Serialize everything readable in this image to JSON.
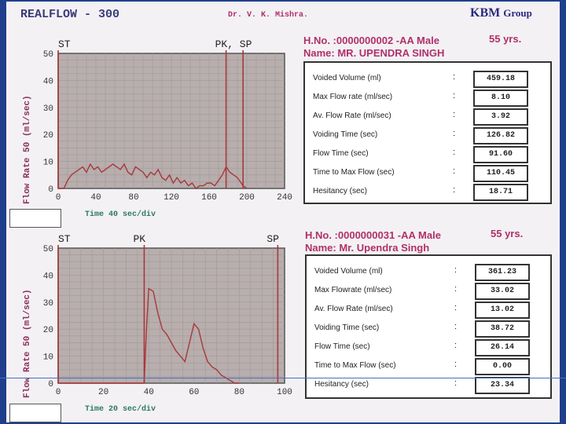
{
  "header": {
    "brand": "REALFLOW - 300",
    "doctor": "Dr. V. K. Mishra.",
    "company": "KBM",
    "company_suffix": "Group"
  },
  "colors": {
    "background": "#1f3e8c",
    "paper": "#f3f1f4",
    "plot": "#b8aeae",
    "trace": "#a8383a",
    "text_accent": "#b0306a"
  },
  "tests": [
    {
      "hno": "H.No. :0000000002 -AA  Male",
      "age": "55 yrs.",
      "name": "Name:  MR. UPENDRA SINGH",
      "ylabel": "Flow Rate 50 (ml/sec)",
      "timelabel": "Time 40 sec/div",
      "rows": [
        {
          "label": "Voided Volume (ml)",
          "value": "459.18"
        },
        {
          "label": "Max Flow rate (ml/sec)",
          "value": "8.10"
        },
        {
          "label": "Av. Flow Rate (ml/sec)",
          "value": "3.92"
        },
        {
          "label": "Voiding Time (sec)",
          "value": "126.82"
        },
        {
          "label": "Flow Time (sec)",
          "value": "91.60"
        },
        {
          "label": "Time to Max Flow (sec)",
          "value": "110.45"
        },
        {
          "label": "Hesitancy (sec)",
          "value": "18.71"
        }
      ]
    },
    {
      "hno": "H.No. :0000000031 -AA  Male",
      "age": "55 yrs.",
      "name": "Name:  Mr. Upendra Singh",
      "ylabel": "Flow Rate 50 (ml/sec)",
      "timelabel": "Time 20 sec/div",
      "rows": [
        {
          "label": "Voided Volume (ml)",
          "value": "361.23"
        },
        {
          "label": "Max Flowrate (ml/sec)",
          "value": "33.02"
        },
        {
          "label": "Av. Flow Rate (ml/sec)",
          "value": "13.02"
        },
        {
          "label": "Voiding Time (sec)",
          "value": "38.72"
        },
        {
          "label": "Flow Time (sec)",
          "value": "26.14"
        },
        {
          "label": "Time to Max Flow (sec)",
          "value": "0.00"
        },
        {
          "label": "Hesitancy (sec)",
          "value": "23.34"
        }
      ]
    }
  ],
  "chart_data": [
    {
      "type": "line",
      "xlim": [
        0,
        240
      ],
      "ylim": [
        0,
        50
      ],
      "xticks": [
        0,
        40,
        80,
        120,
        160,
        200,
        240
      ],
      "yticks": [
        0,
        10,
        20,
        30,
        40,
        50
      ],
      "markers": [
        {
          "label": "ST",
          "x": 0
        },
        {
          "label": "PK, SP",
          "x": 178
        },
        {
          "label": "",
          "x": 196
        }
      ],
      "x": [
        0,
        3,
        6,
        10,
        14,
        18,
        22,
        26,
        30,
        34,
        38,
        42,
        46,
        50,
        54,
        58,
        62,
        66,
        70,
        74,
        78,
        82,
        86,
        90,
        94,
        98,
        102,
        106,
        110,
        114,
        118,
        122,
        126,
        130,
        134,
        138,
        142,
        146,
        150,
        154,
        158,
        162,
        166,
        170,
        174,
        178,
        182,
        186,
        190,
        194,
        196,
        200
      ],
      "y": [
        0,
        0,
        0,
        3,
        5,
        6,
        7,
        8,
        6,
        9,
        7,
        8,
        6,
        7,
        8,
        9,
        8,
        7,
        9,
        6,
        5,
        8,
        7,
        6,
        4,
        6,
        5,
        7,
        4,
        3,
        5,
        2,
        4,
        2,
        3,
        1,
        2,
        0,
        1,
        1,
        2,
        2,
        1,
        3,
        5,
        8,
        6,
        5,
        4,
        2,
        1,
        0
      ]
    },
    {
      "type": "line",
      "xlim": [
        0,
        100
      ],
      "ylim": [
        0,
        50
      ],
      "xticks": [
        0,
        20,
        40,
        60,
        80,
        100
      ],
      "yticks": [
        0,
        10,
        20,
        30,
        40,
        50
      ],
      "markers": [
        {
          "label": "ST",
          "x": 0
        },
        {
          "label": "PK",
          "x": 38
        },
        {
          "label": "SP",
          "x": 97
        }
      ],
      "x": [
        0,
        20,
        38,
        39,
        40,
        42,
        44,
        46,
        48,
        50,
        52,
        54,
        56,
        58,
        60,
        62,
        64,
        66,
        68,
        70,
        72,
        74,
        76,
        78,
        80
      ],
      "y": [
        0,
        0,
        0,
        20,
        35,
        34,
        26,
        20,
        18,
        15,
        12,
        10,
        8,
        15,
        22,
        20,
        13,
        8,
        6,
        5,
        3,
        2,
        1,
        0,
        0
      ]
    }
  ]
}
